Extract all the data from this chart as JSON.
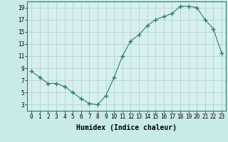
{
  "title": "",
  "xlabel": "Humidex (Indice chaleur)",
  "ylabel": "",
  "x": [
    0,
    1,
    2,
    3,
    4,
    5,
    6,
    7,
    8,
    9,
    10,
    11,
    12,
    13,
    14,
    15,
    16,
    17,
    18,
    19,
    20,
    21,
    22,
    23
  ],
  "y": [
    8.5,
    7.5,
    6.5,
    6.5,
    6.0,
    5.0,
    4.0,
    3.2,
    3.0,
    4.5,
    7.5,
    11.0,
    13.5,
    14.5,
    16.0,
    17.0,
    17.5,
    18.0,
    19.2,
    19.2,
    19.0,
    17.0,
    15.5,
    11.5
  ],
  "line_color": "#2e7d6e",
  "marker": "+",
  "marker_size": 4,
  "marker_linewidth": 1.0,
  "line_width": 0.8,
  "bg_color": "#c8eae8",
  "grid_color": "#b0cccb",
  "axes_bg": "#d6f0ef",
  "yticks": [
    3,
    5,
    7,
    9,
    11,
    13,
    15,
    17,
    19
  ],
  "xticks": [
    0,
    1,
    2,
    3,
    4,
    5,
    6,
    7,
    8,
    9,
    10,
    11,
    12,
    13,
    14,
    15,
    16,
    17,
    18,
    19,
    20,
    21,
    22,
    23
  ],
  "xtick_labels": [
    "0",
    "1",
    "2",
    "3",
    "4",
    "5",
    "6",
    "7",
    "8",
    "9",
    "10",
    "11",
    "12",
    "13",
    "14",
    "15",
    "16",
    "17",
    "18",
    "19",
    "20",
    "21",
    "22",
    "23"
  ],
  "ylim": [
    2,
    20
  ],
  "xlim": [
    -0.5,
    23.5
  ],
  "tick_fontsize": 5.5,
  "xlabel_fontsize": 7,
  "xlabel_bold": true
}
